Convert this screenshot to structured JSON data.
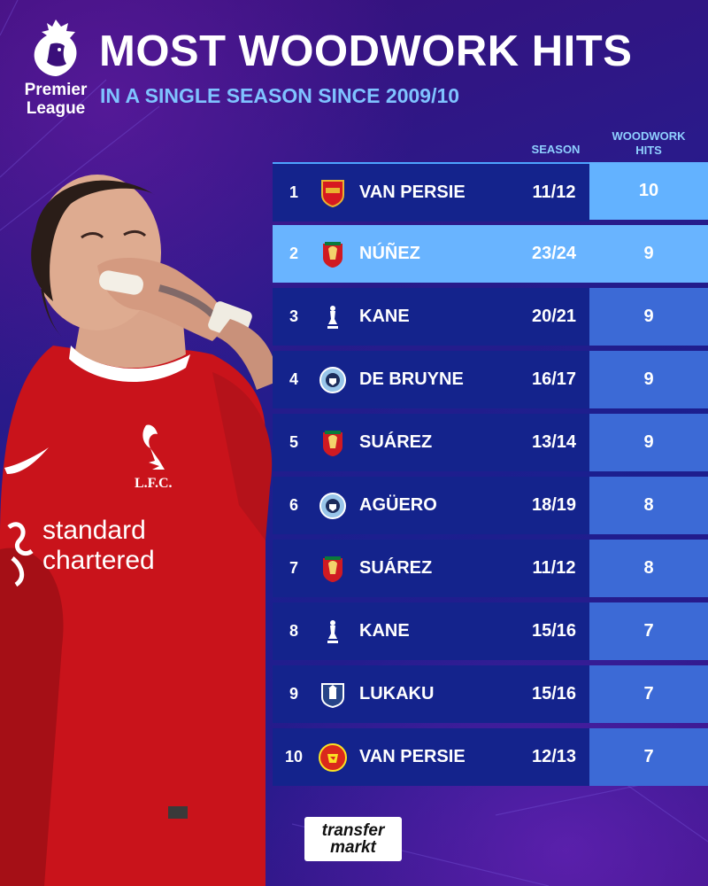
{
  "header": {
    "logo_word_1": "Premier",
    "logo_word_2": "League",
    "title": "MOST WOODWORK HITS",
    "subtitle": "IN A SINGLE SEASON SINCE 2009/10"
  },
  "columns": {
    "season": "SEASON",
    "hits_line1": "WOODWORK",
    "hits_line2": "HITS"
  },
  "player": {
    "shirt_text_1": "standard",
    "shirt_text_2": "chartered",
    "crest_text": "L.F.C."
  },
  "rows": [
    {
      "rank": "1",
      "club_icon": "arsenal-crest-icon",
      "name": "VAN PERSIE",
      "season": "11/12",
      "hits": "10"
    },
    {
      "rank": "2",
      "club_icon": "liverpool-crest-icon",
      "name": "NÚÑEZ",
      "season": "23/24",
      "hits": "9"
    },
    {
      "rank": "3",
      "club_icon": "tottenham-crest-icon",
      "name": "KANE",
      "season": "20/21",
      "hits": "9"
    },
    {
      "rank": "4",
      "club_icon": "man-city-crest-icon",
      "name": "DE BRUYNE",
      "season": "16/17",
      "hits": "9"
    },
    {
      "rank": "5",
      "club_icon": "liverpool-crest-icon",
      "name": "SUÁREZ",
      "season": "13/14",
      "hits": "9"
    },
    {
      "rank": "6",
      "club_icon": "man-city-crest-icon",
      "name": "AGÜERO",
      "season": "18/19",
      "hits": "8"
    },
    {
      "rank": "7",
      "club_icon": "liverpool-crest-icon",
      "name": "SUÁREZ",
      "season": "11/12",
      "hits": "8"
    },
    {
      "rank": "8",
      "club_icon": "tottenham-crest-icon",
      "name": "KANE",
      "season": "15/16",
      "hits": "7"
    },
    {
      "rank": "9",
      "club_icon": "everton-crest-icon",
      "name": "LUKAKU",
      "season": "15/16",
      "hits": "7"
    },
    {
      "rank": "10",
      "club_icon": "man-united-crest-icon",
      "name": "VAN PERSIE",
      "season": "12/13",
      "hits": "7"
    }
  ],
  "footer": {
    "brand_line1": "transfer",
    "brand_line2": "markt"
  },
  "colors": {
    "title": "#ffffff",
    "subtitle": "#7fc3ff",
    "row_dark": "#14238c",
    "row_highlight": "#69b4ff",
    "hits_cell": "#3c6ad6",
    "liverpool_red": "#d01a22"
  }
}
